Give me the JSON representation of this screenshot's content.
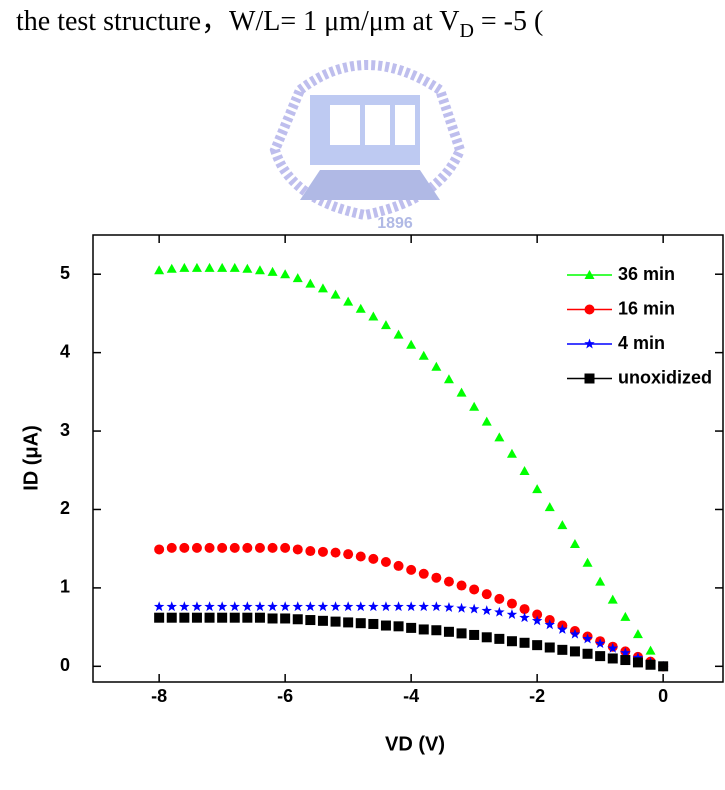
{
  "chart_data": {
    "type": "scatter",
    "caption": {
      "main": "the test structure，W/L= 1 μm/μm at V",
      "subscript": "D",
      "tail": " = -5 ("
    },
    "watermark": "1896",
    "x_label": "VD (V)",
    "y_label": "ID (μA)",
    "xlim": [
      -9.05,
      0.95
    ],
    "ylim": [
      -0.2,
      5.5
    ],
    "xticks": [
      -8,
      -6,
      -4,
      -2,
      0
    ],
    "yticks": [
      0,
      1,
      2,
      3,
      4,
      5
    ],
    "legend": "upper right",
    "x": [
      -8,
      -7.8,
      -7.6,
      -7.4,
      -7.2,
      -7,
      -6.8,
      -6.6,
      -6.4,
      -6.2,
      -6,
      -5.8,
      -5.6,
      -5.4,
      -5.2,
      -5,
      -4.8,
      -4.6,
      -4.4,
      -4.2,
      -4,
      -3.8,
      -3.6,
      -3.4,
      -3.2,
      -3,
      -2.8,
      -2.6,
      -2.4,
      -2.2,
      -2,
      -1.8,
      -1.6,
      -1.4,
      -1.2,
      -1,
      -0.8,
      -0.6,
      -0.4,
      -0.2,
      0
    ],
    "series": [
      {
        "name": "36 min",
        "color": "#00ff00",
        "marker": "triangle",
        "values": [
          5.05,
          5.07,
          5.08,
          5.08,
          5.08,
          5.08,
          5.08,
          5.07,
          5.05,
          5.03,
          5.0,
          4.95,
          4.88,
          4.82,
          4.74,
          4.65,
          4.56,
          4.46,
          4.35,
          4.23,
          4.1,
          3.96,
          3.82,
          3.66,
          3.49,
          3.31,
          3.12,
          2.92,
          2.71,
          2.49,
          2.26,
          2.03,
          1.8,
          1.56,
          1.32,
          1.08,
          0.85,
          0.63,
          0.41,
          0.2,
          0
        ]
      },
      {
        "name": "16 min",
        "color": "#ff0000",
        "marker": "circle",
        "values": [
          1.49,
          1.51,
          1.51,
          1.51,
          1.51,
          1.51,
          1.51,
          1.51,
          1.51,
          1.51,
          1.51,
          1.49,
          1.47,
          1.46,
          1.45,
          1.43,
          1.4,
          1.37,
          1.33,
          1.28,
          1.23,
          1.18,
          1.13,
          1.08,
          1.03,
          0.98,
          0.92,
          0.86,
          0.8,
          0.73,
          0.66,
          0.59,
          0.52,
          0.45,
          0.38,
          0.32,
          0.25,
          0.19,
          0.12,
          0.06,
          0
        ]
      },
      {
        "name": "4 min",
        "color": "#0000ff",
        "marker": "star",
        "values": [
          0.76,
          0.76,
          0.76,
          0.76,
          0.76,
          0.76,
          0.76,
          0.76,
          0.76,
          0.76,
          0.76,
          0.76,
          0.76,
          0.76,
          0.76,
          0.76,
          0.76,
          0.76,
          0.76,
          0.76,
          0.76,
          0.76,
          0.76,
          0.75,
          0.74,
          0.73,
          0.71,
          0.69,
          0.66,
          0.62,
          0.58,
          0.53,
          0.47,
          0.41,
          0.35,
          0.29,
          0.23,
          0.17,
          0.11,
          0.05,
          0
        ]
      },
      {
        "name": "unoxidized",
        "color": "#000000",
        "marker": "square",
        "values": [
          0.62,
          0.62,
          0.62,
          0.62,
          0.62,
          0.62,
          0.62,
          0.62,
          0.62,
          0.61,
          0.61,
          0.6,
          0.59,
          0.58,
          0.57,
          0.56,
          0.55,
          0.54,
          0.52,
          0.51,
          0.49,
          0.47,
          0.46,
          0.44,
          0.42,
          0.4,
          0.37,
          0.35,
          0.32,
          0.3,
          0.27,
          0.24,
          0.21,
          0.19,
          0.16,
          0.13,
          0.1,
          0.08,
          0.05,
          0.02,
          0
        ]
      }
    ]
  }
}
